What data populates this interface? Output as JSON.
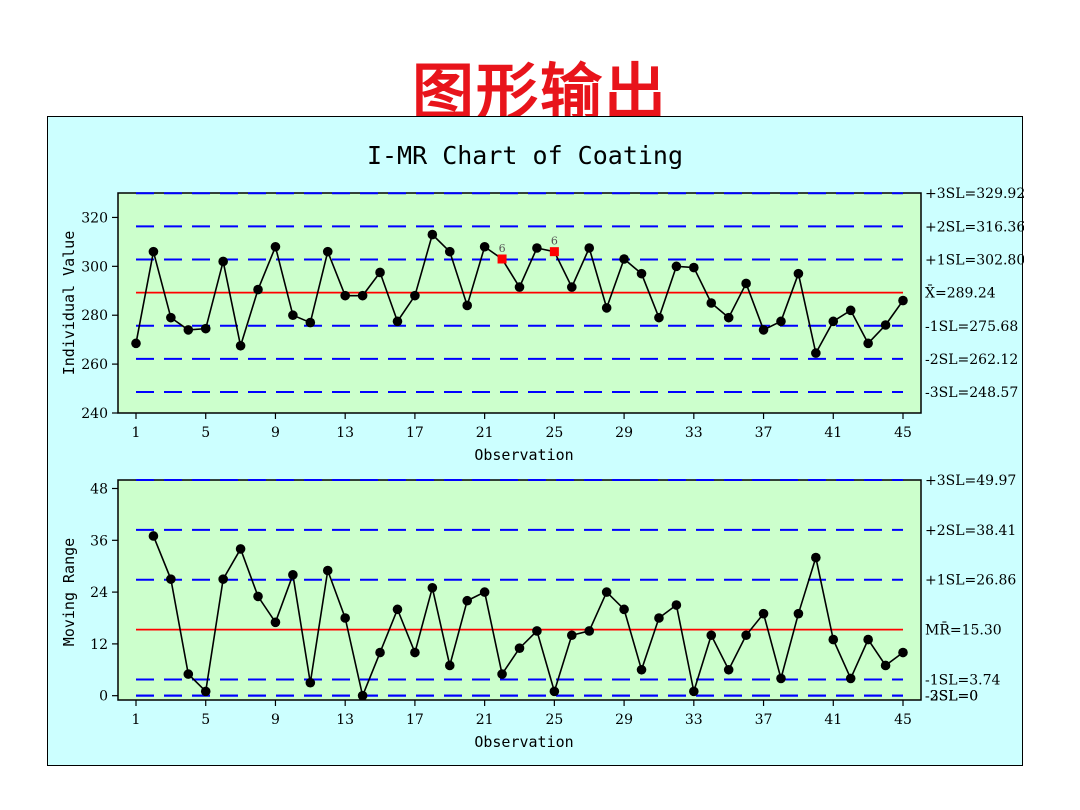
{
  "slide": {
    "title": "图形输出"
  },
  "chart_data": [
    {
      "type": "line",
      "title": "I-MR Chart of Coating",
      "xlabel": "Observation",
      "ylabel": "Individual Value",
      "xlim": [
        1,
        45
      ],
      "ylim": [
        240,
        330
      ],
      "xticks": [
        1,
        5,
        9,
        13,
        17,
        21,
        25,
        29,
        33,
        37,
        41,
        45
      ],
      "yticks": [
        240,
        260,
        280,
        300,
        320
      ],
      "x": [
        1,
        2,
        3,
        4,
        5,
        6,
        7,
        8,
        9,
        10,
        11,
        12,
        13,
        14,
        15,
        16,
        17,
        18,
        19,
        20,
        21,
        22,
        23,
        24,
        25,
        26,
        27,
        28,
        29,
        30,
        31,
        32,
        33,
        34,
        35,
        36,
        37,
        38,
        39,
        40,
        41,
        42,
        43,
        44,
        45
      ],
      "values": [
        268.5,
        306,
        279,
        274,
        274.5,
        302,
        267.5,
        290.5,
        308,
        280,
        277,
        306,
        288,
        288,
        297.5,
        277.5,
        288,
        313,
        306,
        284,
        308,
        303,
        291.5,
        307.5,
        306,
        291.5,
        307.5,
        283,
        303,
        297,
        279,
        300,
        299.5,
        285,
        279,
        293,
        274,
        277.5,
        297,
        264.5,
        277.5,
        282,
        268.5,
        276,
        286
      ],
      "flagged": [
        {
          "x": 22,
          "label": "6"
        },
        {
          "x": 25,
          "label": "6"
        }
      ],
      "center": {
        "label": "X̄=289.24",
        "value": 289.24
      },
      "limits": [
        {
          "label": "+3SL=329.92",
          "value": 329.92
        },
        {
          "label": "+2SL=316.36",
          "value": 316.36
        },
        {
          "label": "+1SL=302.80",
          "value": 302.8
        },
        {
          "label": "-1SL=275.68",
          "value": 275.68
        },
        {
          "label": "-2SL=262.12",
          "value": 262.12
        },
        {
          "label": "-3SL=248.57",
          "value": 248.57
        }
      ]
    },
    {
      "type": "line",
      "title": "",
      "xlabel": "Observation",
      "ylabel": "Moving Range",
      "xlim": [
        1,
        45
      ],
      "ylim": [
        -1,
        49.97
      ],
      "xticks": [
        1,
        5,
        9,
        13,
        17,
        21,
        25,
        29,
        33,
        37,
        41,
        45
      ],
      "yticks": [
        0,
        12,
        24,
        36,
        48
      ],
      "x": [
        2,
        3,
        4,
        5,
        6,
        7,
        8,
        9,
        10,
        11,
        12,
        13,
        14,
        15,
        16,
        17,
        18,
        19,
        20,
        21,
        22,
        23,
        24,
        25,
        26,
        27,
        28,
        29,
        30,
        31,
        32,
        33,
        34,
        35,
        36,
        37,
        38,
        39,
        40,
        41,
        42,
        43,
        44,
        45
      ],
      "values": [
        37,
        27,
        5,
        1,
        27,
        34,
        23,
        17,
        28,
        3,
        29,
        18,
        0,
        10,
        20,
        10,
        25,
        7,
        22,
        24,
        5,
        11,
        15,
        1,
        14,
        15,
        24,
        20,
        6,
        18,
        21,
        1,
        14,
        6,
        14,
        19,
        4,
        19,
        32,
        13,
        4,
        13,
        7,
        10
      ],
      "flagged": [],
      "center": {
        "label": "MR̄=15.30",
        "value": 15.3
      },
      "limits": [
        {
          "label": "+3SL=49.97",
          "value": 49.97
        },
        {
          "label": "+2SL=38.41",
          "value": 38.41
        },
        {
          "label": "+1SL=26.86",
          "value": 26.86
        },
        {
          "label": "-1SL=3.74",
          "value": 3.74
        },
        {
          "label": "-2SL=0",
          "value": 0
        },
        {
          "label": "-3SL=0",
          "value": 0
        }
      ],
      "overlapping_labels": true
    }
  ],
  "colors": {
    "frame_bg": "#ccffff",
    "plot_bg": "#ccffcc",
    "center_line": "#ff0000",
    "limit_line": "#0000ff",
    "series": "#000000",
    "flagged_point": "#ff0000",
    "title_text": "#e8141b"
  }
}
